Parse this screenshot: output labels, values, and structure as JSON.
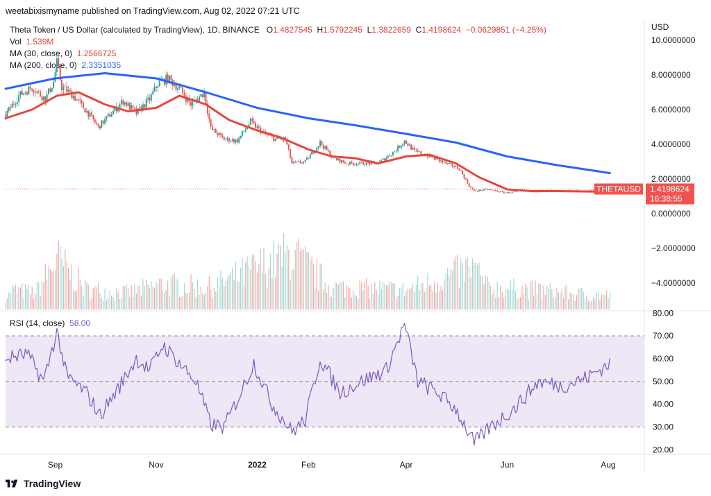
{
  "header": {
    "publish_line": "weetabixismyname published on TradingView.com, Aug 02, 2022 07:21 UTC"
  },
  "legend": {
    "title": "Theta Token / US Dollar (calculated by TradingView), 1D, BINANCE",
    "o_label": "O",
    "o_value": "1.4827545",
    "h_label": "H",
    "h_value": "1.5792245",
    "l_label": "L",
    "l_value": "1.3822659",
    "c_label": "C",
    "c_value": "1.4198624",
    "change": "−0.0629851 (−4.25%)",
    "vol_label": "Vol",
    "vol_value": "1.539M",
    "ma30_label": "MA (30, close, 0)",
    "ma30_value": "1.2566725",
    "ma200_label": "MA (200, close, 0)",
    "ma200_value": "2.3351035",
    "rsi_label": "RSI (14, close)",
    "rsi_value": "58.00"
  },
  "price_tag": {
    "symbol": "THETAUSD",
    "price": "1.4198624",
    "countdown": "16:38:55"
  },
  "footer": {
    "brand": "TradingView"
  },
  "colors": {
    "up": "#26a69a",
    "down": "#ef5350",
    "ma30": "#e8453c",
    "ma200": "#2962ff",
    "rsi": "#7e57c2",
    "rsi_band": "#ede7f6"
  },
  "chart_data": [
    {
      "type": "line",
      "subtype": "candlestick with moving averages and volume",
      "y_axis_title": "USD",
      "y_axis_ticks": [
        "10.0000000",
        "8.0000000",
        "6.0000000",
        "4.0000000",
        "2.0000000",
        "0.0000000",
        "−2.0000000",
        "−4.0000000"
      ],
      "y_tick_values": [
        10,
        8,
        6,
        4,
        2,
        0,
        -2,
        -4
      ],
      "ylim": [
        -5.6,
        11.2
      ],
      "x_axis_ticks": [
        "Sep",
        "Nov",
        "2022",
        "Feb",
        "Apr",
        "Jun",
        "Aug"
      ],
      "x_tick_dates": [
        "2021-09-01",
        "2021-11-01",
        "2022-01-01",
        "2022-02-01",
        "2022-04-01",
        "2022-06-01",
        "2022-08-01"
      ],
      "xlim": [
        "2021-08-02",
        "2022-08-22"
      ],
      "close_points": [
        [
          "2021-08-02",
          5.7
        ],
        [
          "2021-08-10",
          6.8
        ],
        [
          "2021-08-18",
          7.3
        ],
        [
          "2021-08-26",
          6.6
        ],
        [
          "2021-08-31",
          7.6
        ],
        [
          "2021-09-02",
          8.7
        ],
        [
          "2021-09-05",
          7.3
        ],
        [
          "2021-09-12",
          6.8
        ],
        [
          "2021-09-20",
          5.9
        ],
        [
          "2021-09-27",
          5.0
        ],
        [
          "2021-10-05",
          5.8
        ],
        [
          "2021-10-12",
          6.5
        ],
        [
          "2021-10-20",
          5.8
        ],
        [
          "2021-10-28",
          6.6
        ],
        [
          "2021-11-02",
          7.5
        ],
        [
          "2021-11-08",
          7.8
        ],
        [
          "2021-11-15",
          7.2
        ],
        [
          "2021-11-22",
          6.3
        ],
        [
          "2021-11-30",
          7.0
        ],
        [
          "2021-12-04",
          4.9
        ],
        [
          "2021-12-12",
          4.3
        ],
        [
          "2021-12-20",
          4.2
        ],
        [
          "2021-12-28",
          5.3
        ],
        [
          "2022-01-05",
          4.6
        ],
        [
          "2022-01-12",
          4.3
        ],
        [
          "2022-01-18",
          4.3
        ],
        [
          "2022-01-22",
          2.9
        ],
        [
          "2022-01-30",
          3.0
        ],
        [
          "2022-02-08",
          4.1
        ],
        [
          "2022-02-16",
          3.2
        ],
        [
          "2022-02-24",
          2.9
        ],
        [
          "2022-03-05",
          2.9
        ],
        [
          "2022-03-15",
          2.9
        ],
        [
          "2022-03-25",
          3.6
        ],
        [
          "2022-03-31",
          4.2
        ],
        [
          "2022-04-06",
          3.6
        ],
        [
          "2022-04-15",
          3.3
        ],
        [
          "2022-04-25",
          2.9
        ],
        [
          "2022-05-03",
          2.6
        ],
        [
          "2022-05-09",
          1.6
        ],
        [
          "2022-05-12",
          1.3
        ],
        [
          "2022-05-20",
          1.4
        ],
        [
          "2022-05-31",
          1.2
        ],
        [
          "2022-06-10",
          1.3
        ],
        [
          "2022-06-20",
          1.3
        ],
        [
          "2022-06-30",
          1.3
        ],
        [
          "2022-07-10",
          1.3
        ],
        [
          "2022-07-20",
          1.3
        ],
        [
          "2022-08-02",
          1.42
        ]
      ],
      "series": [
        {
          "name": "MA (30, close, 0)",
          "points": [
            [
              "2021-08-02",
              5.5
            ],
            [
              "2021-08-18",
              6.0
            ],
            [
              "2021-09-02",
              6.8
            ],
            [
              "2021-09-15",
              7.0
            ],
            [
              "2021-10-01",
              6.3
            ],
            [
              "2021-10-15",
              5.9
            ],
            [
              "2021-11-01",
              6.1
            ],
            [
              "2021-11-15",
              6.8
            ],
            [
              "2021-12-01",
              6.3
            ],
            [
              "2021-12-15",
              5.4
            ],
            [
              "2022-01-01",
              4.8
            ],
            [
              "2022-01-15",
              4.4
            ],
            [
              "2022-02-01",
              3.7
            ],
            [
              "2022-02-15",
              3.3
            ],
            [
              "2022-03-01",
              3.2
            ],
            [
              "2022-03-15",
              2.9
            ],
            [
              "2022-04-01",
              3.3
            ],
            [
              "2022-04-15",
              3.4
            ],
            [
              "2022-05-01",
              2.9
            ],
            [
              "2022-05-15",
              2.1
            ],
            [
              "2022-06-01",
              1.4
            ],
            [
              "2022-06-15",
              1.3
            ],
            [
              "2022-07-01",
              1.3
            ],
            [
              "2022-08-02",
              1.26
            ]
          ]
        },
        {
          "name": "MA (200, close, 0)",
          "points": [
            [
              "2021-08-02",
              7.2
            ],
            [
              "2021-09-01",
              7.8
            ],
            [
              "2021-10-01",
              8.1
            ],
            [
              "2021-11-01",
              7.8
            ],
            [
              "2021-12-01",
              7.0
            ],
            [
              "2022-01-01",
              6.1
            ],
            [
              "2022-02-01",
              5.5
            ],
            [
              "2022-03-01",
              5.1
            ],
            [
              "2022-04-01",
              4.6
            ],
            [
              "2022-05-01",
              4.1
            ],
            [
              "2022-06-01",
              3.3
            ],
            [
              "2022-07-01",
              2.8
            ],
            [
              "2022-08-02",
              2.34
            ]
          ]
        }
      ],
      "last_price": 1.4198624,
      "volume_relative": [
        [
          "2021-08-05",
          0.35
        ],
        [
          "2021-08-20",
          0.3
        ],
        [
          "2021-09-02",
          0.9
        ],
        [
          "2021-09-20",
          0.35
        ],
        [
          "2021-10-15",
          0.3
        ],
        [
          "2021-11-05",
          0.45
        ],
        [
          "2021-12-04",
          0.4
        ],
        [
          "2022-01-22",
          1.0
        ],
        [
          "2022-02-15",
          0.4
        ],
        [
          "2022-04-01",
          0.35
        ],
        [
          "2022-05-12",
          0.75
        ],
        [
          "2022-05-20",
          0.4
        ],
        [
          "2022-06-20",
          0.35
        ],
        [
          "2022-07-25",
          0.25
        ]
      ]
    },
    {
      "type": "line",
      "name": "RSI (14, close)",
      "y_axis_ticks": [
        "80.00",
        "70.00",
        "60.00",
        "50.00",
        "40.00",
        "30.00",
        "20.00"
      ],
      "y_tick_values": [
        80,
        70,
        60,
        50,
        40,
        30,
        20
      ],
      "ylim": [
        18,
        81
      ],
      "band": [
        30,
        70
      ],
      "midline": 50,
      "points": [
        [
          "2021-08-02",
          60
        ],
        [
          "2021-08-15",
          62
        ],
        [
          "2021-08-25",
          50
        ],
        [
          "2021-09-02",
          72
        ],
        [
          "2021-09-08",
          52
        ],
        [
          "2021-09-20",
          45
        ],
        [
          "2021-09-28",
          35
        ],
        [
          "2021-10-10",
          48
        ],
        [
          "2021-10-20",
          60
        ],
        [
          "2021-10-28",
          55
        ],
        [
          "2021-11-05",
          66
        ],
        [
          "2021-11-15",
          58
        ],
        [
          "2021-11-25",
          50
        ],
        [
          "2021-12-04",
          31
        ],
        [
          "2021-12-12",
          30
        ],
        [
          "2021-12-22",
          45
        ],
        [
          "2021-12-30",
          58
        ],
        [
          "2022-01-10",
          40
        ],
        [
          "2022-01-22",
          28
        ],
        [
          "2022-01-30",
          33
        ],
        [
          "2022-02-08",
          60
        ],
        [
          "2022-02-20",
          45
        ],
        [
          "2022-03-05",
          50
        ],
        [
          "2022-03-20",
          55
        ],
        [
          "2022-03-31",
          75
        ],
        [
          "2022-04-08",
          50
        ],
        [
          "2022-04-20",
          45
        ],
        [
          "2022-05-01",
          38
        ],
        [
          "2022-05-12",
          23
        ],
        [
          "2022-05-22",
          30
        ],
        [
          "2022-06-05",
          38
        ],
        [
          "2022-06-20",
          50
        ],
        [
          "2022-07-05",
          48
        ],
        [
          "2022-07-20",
          52
        ],
        [
          "2022-08-02",
          58
        ]
      ]
    }
  ]
}
